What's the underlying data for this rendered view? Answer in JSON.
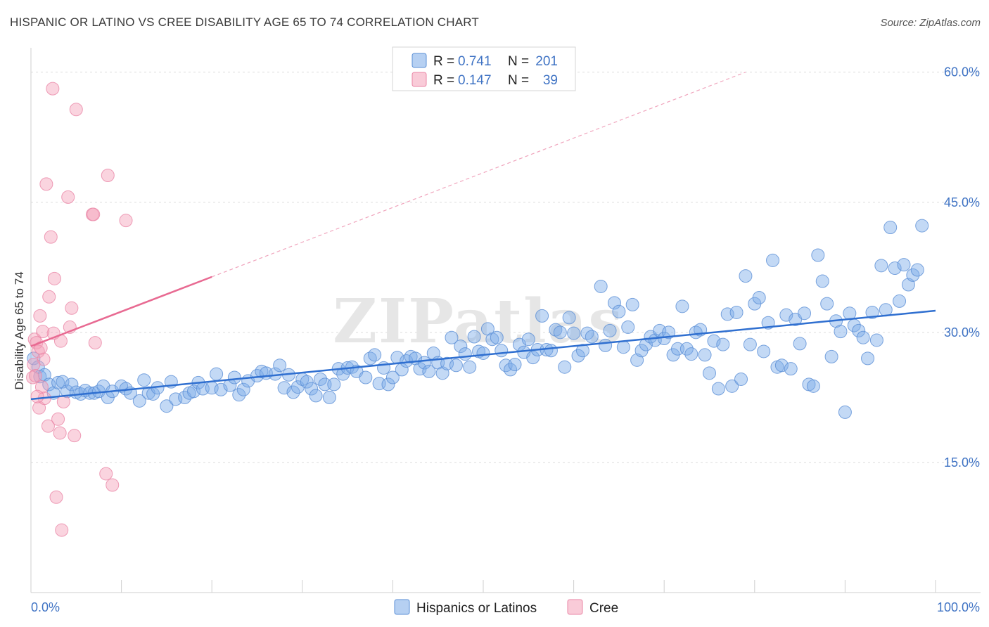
{
  "chart_data": {
    "type": "scatter",
    "title": "HISPANIC OR LATINO VS CREE DISABILITY AGE 65 TO 74 CORRELATION CHART",
    "source": "Source: ZipAtlas.com",
    "xlabel": "",
    "ylabel": "Disability Age 65 to 74",
    "xlim": [
      0,
      100
    ],
    "ylim": [
      0,
      62
    ],
    "x_tick_labels": [
      "0.0%",
      "100.0%"
    ],
    "y_ticks": [
      15,
      30,
      45,
      60
    ],
    "y_tick_labels": [
      "15.0%",
      "30.0%",
      "45.0%",
      "60.0%"
    ],
    "grid": true,
    "legend_position": "top-center",
    "legend": [
      {
        "name": "Hispanics or Latinos",
        "r_label": "R =",
        "r_value": "0.741",
        "n_label": "N =",
        "n_value": "201",
        "color": "#7aaae8"
      },
      {
        "name": "Cree",
        "r_label": "R =",
        "r_value": "0.147",
        "n_label": "N =",
        "n_value": "39",
        "color": "#f4a0b8"
      }
    ],
    "watermark": "ZIPatlas",
    "series": [
      {
        "name": "Hispanics or Latinos",
        "color": "#7aaae8",
        "trend": {
          "x0": 0,
          "y0": 22.3,
          "x1": 100,
          "y1": 32.5
        },
        "points": [
          [
            0.3,
            27
          ],
          [
            0.8,
            26
          ],
          [
            1,
            24.9
          ],
          [
            1.5,
            25.1
          ],
          [
            2,
            24
          ],
          [
            2.5,
            23
          ],
          [
            3,
            24.2
          ],
          [
            3.5,
            24.3
          ],
          [
            4,
            23.2
          ],
          [
            4.5,
            24
          ],
          [
            5,
            23.1
          ],
          [
            5.5,
            22.9
          ],
          [
            6,
            23.3
          ],
          [
            6.5,
            23
          ],
          [
            7,
            23
          ],
          [
            7.5,
            23.2
          ],
          [
            8,
            23.8
          ],
          [
            8.5,
            22.5
          ],
          [
            9,
            23.2
          ],
          [
            10,
            23.8
          ],
          [
            10.5,
            23.5
          ],
          [
            11,
            23
          ],
          [
            12,
            22.1
          ],
          [
            12.5,
            24.5
          ],
          [
            13,
            23
          ],
          [
            13.5,
            22.9
          ],
          [
            14,
            23.6
          ],
          [
            15,
            21.5
          ],
          [
            15.5,
            24.3
          ],
          [
            16,
            22.3
          ],
          [
            17,
            22.5
          ],
          [
            17.5,
            23
          ],
          [
            18,
            23.2
          ],
          [
            18.5,
            24.2
          ],
          [
            19,
            23.5
          ],
          [
            20,
            23.6
          ],
          [
            20.5,
            25.2
          ],
          [
            21,
            23.4
          ],
          [
            22,
            23.9
          ],
          [
            22.5,
            24.8
          ],
          [
            23,
            22.8
          ],
          [
            23.5,
            23.4
          ],
          [
            24,
            24.4
          ],
          [
            25,
            25
          ],
          [
            25.5,
            25.5
          ],
          [
            26,
            25.3
          ],
          [
            27,
            25.2
          ],
          [
            27.5,
            26.2
          ],
          [
            28,
            23.6
          ],
          [
            28.5,
            25.1
          ],
          [
            29,
            23.1
          ],
          [
            29.5,
            23.7
          ],
          [
            30,
            24.6
          ],
          [
            30.5,
            24.3
          ],
          [
            31,
            23.5
          ],
          [
            31.5,
            22.7
          ],
          [
            32,
            24.6
          ],
          [
            32.5,
            24
          ],
          [
            33,
            22.5
          ],
          [
            33.5,
            24
          ],
          [
            34,
            25.8
          ],
          [
            34.5,
            25.2
          ],
          [
            35,
            25.9
          ],
          [
            35.5,
            26
          ],
          [
            36,
            25.5
          ],
          [
            37,
            24.8
          ],
          [
            37.5,
            27
          ],
          [
            38,
            27.4
          ],
          [
            38.5,
            24.1
          ],
          [
            39,
            25.9
          ],
          [
            39.5,
            24
          ],
          [
            40,
            24.8
          ],
          [
            40.5,
            27.1
          ],
          [
            41,
            25.7
          ],
          [
            41.5,
            26.7
          ],
          [
            42,
            27.2
          ],
          [
            42.5,
            27
          ],
          [
            43,
            25.8
          ],
          [
            43.5,
            26.5
          ],
          [
            44,
            25.5
          ],
          [
            44.5,
            27.6
          ],
          [
            45,
            26.5
          ],
          [
            45.5,
            25.3
          ],
          [
            46,
            26.4
          ],
          [
            46.5,
            29.4
          ],
          [
            47,
            26.2
          ],
          [
            47.5,
            28.4
          ],
          [
            48,
            27.5
          ],
          [
            48.5,
            26
          ],
          [
            49,
            29.5
          ],
          [
            49.5,
            27.8
          ],
          [
            50,
            27.6
          ],
          [
            50.5,
            30.4
          ],
          [
            51,
            29.2
          ],
          [
            51.5,
            29.4
          ],
          [
            52,
            27.9
          ],
          [
            52.5,
            26.2
          ],
          [
            53,
            25.7
          ],
          [
            53.5,
            26.3
          ],
          [
            54,
            28.6
          ],
          [
            54.5,
            27.7
          ],
          [
            55,
            29.2
          ],
          [
            55.5,
            27.1
          ],
          [
            56,
            28
          ],
          [
            56.5,
            31.9
          ],
          [
            57,
            28
          ],
          [
            57.5,
            27.9
          ],
          [
            58,
            30.3
          ],
          [
            58.5,
            30
          ],
          [
            59,
            26
          ],
          [
            59.5,
            31.7
          ],
          [
            60,
            29.9
          ],
          [
            60.5,
            27.3
          ],
          [
            61,
            27.9
          ],
          [
            61.5,
            29.9
          ],
          [
            62,
            29.5
          ],
          [
            63,
            35.3
          ],
          [
            63.5,
            28.5
          ],
          [
            64,
            30.2
          ],
          [
            64.5,
            33.4
          ],
          [
            65,
            32.4
          ],
          [
            65.5,
            28.3
          ],
          [
            66,
            30.6
          ],
          [
            66.5,
            33.2
          ],
          [
            67,
            26.8
          ],
          [
            67.5,
            27.9
          ],
          [
            68,
            28.6
          ],
          [
            68.5,
            29.5
          ],
          [
            69,
            29.1
          ],
          [
            69.5,
            30.2
          ],
          [
            70,
            29.3
          ],
          [
            70.5,
            30
          ],
          [
            71,
            27.4
          ],
          [
            71.5,
            28.1
          ],
          [
            72,
            33
          ],
          [
            72.5,
            28.1
          ],
          [
            73,
            27.5
          ],
          [
            73.5,
            30
          ],
          [
            74,
            30.3
          ],
          [
            74.5,
            27.4
          ],
          [
            75,
            25.3
          ],
          [
            75.5,
            29
          ],
          [
            76,
            23.5
          ],
          [
            76.5,
            28.6
          ],
          [
            77,
            32.1
          ],
          [
            77.5,
            23.8
          ],
          [
            78,
            32.3
          ],
          [
            78.5,
            24.6
          ],
          [
            79,
            36.5
          ],
          [
            79.5,
            28.6
          ],
          [
            80,
            33.3
          ],
          [
            80.5,
            34
          ],
          [
            81,
            27.8
          ],
          [
            81.5,
            31.1
          ],
          [
            82,
            38.3
          ],
          [
            82.5,
            26
          ],
          [
            83,
            26.2
          ],
          [
            83.5,
            32
          ],
          [
            84,
            25.8
          ],
          [
            84.5,
            31.5
          ],
          [
            85,
            28.7
          ],
          [
            85.5,
            32.2
          ],
          [
            86,
            24
          ],
          [
            86.5,
            23.8
          ],
          [
            87,
            38.9
          ],
          [
            87.5,
            35.9
          ],
          [
            88,
            33.3
          ],
          [
            88.5,
            27.2
          ],
          [
            89,
            31.3
          ],
          [
            89.5,
            30.1
          ],
          [
            90,
            20.8
          ],
          [
            90.5,
            32.2
          ],
          [
            91,
            30.8
          ],
          [
            91.5,
            30.2
          ],
          [
            92,
            29.4
          ],
          [
            92.5,
            27
          ],
          [
            93,
            32.3
          ],
          [
            93.5,
            29.1
          ],
          [
            94,
            37.7
          ],
          [
            94.5,
            32.6
          ],
          [
            95,
            42.1
          ],
          [
            95.5,
            37.4
          ],
          [
            96,
            33.6
          ],
          [
            96.5,
            37.8
          ],
          [
            97,
            35.5
          ],
          [
            97.5,
            36.6
          ],
          [
            98,
            37.2
          ],
          [
            98.5,
            42.3
          ]
        ]
      },
      {
        "name": "Cree",
        "color": "#f4a0b8",
        "trend": {
          "x0": 0,
          "y0": 28.4,
          "x1": 20,
          "y1": 36.4
        },
        "trend_extension": {
          "x0": 20,
          "y0": 36.4,
          "x1": 79,
          "y1": 60.0
        },
        "points": [
          [
            0.2,
            24.8
          ],
          [
            0.4,
            29.2
          ],
          [
            0.6,
            28.8
          ],
          [
            0.8,
            27.8
          ],
          [
            0.9,
            21.3
          ],
          [
            1,
            31.9
          ],
          [
            1.2,
            23.7
          ],
          [
            1.4,
            26.9
          ],
          [
            1.5,
            22.4
          ],
          [
            1.7,
            47.1
          ],
          [
            1.9,
            19.2
          ],
          [
            2,
            34.1
          ],
          [
            2.2,
            41
          ],
          [
            2.4,
            58.1
          ],
          [
            2.5,
            29.9
          ],
          [
            2.6,
            36.2
          ],
          [
            2.8,
            11
          ],
          [
            3,
            20
          ],
          [
            3.2,
            18.4
          ],
          [
            3.3,
            29
          ],
          [
            3.4,
            7.2
          ],
          [
            3.6,
            22
          ],
          [
            4.1,
            45.6
          ],
          [
            4.3,
            30.6
          ],
          [
            4.5,
            32.8
          ],
          [
            4.8,
            18.1
          ],
          [
            5,
            55.7
          ],
          [
            6.8,
            43.6
          ],
          [
            6.9,
            43.6
          ],
          [
            7.1,
            28.8
          ],
          [
            8.3,
            13.7
          ],
          [
            8.5,
            48.1
          ],
          [
            9,
            12.4
          ],
          [
            10.5,
            42.9
          ],
          [
            0.3,
            26.3
          ],
          [
            0.5,
            25
          ],
          [
            1.1,
            28.2
          ],
          [
            0.7,
            22.6
          ],
          [
            1.3,
            30.1
          ]
        ]
      }
    ]
  }
}
